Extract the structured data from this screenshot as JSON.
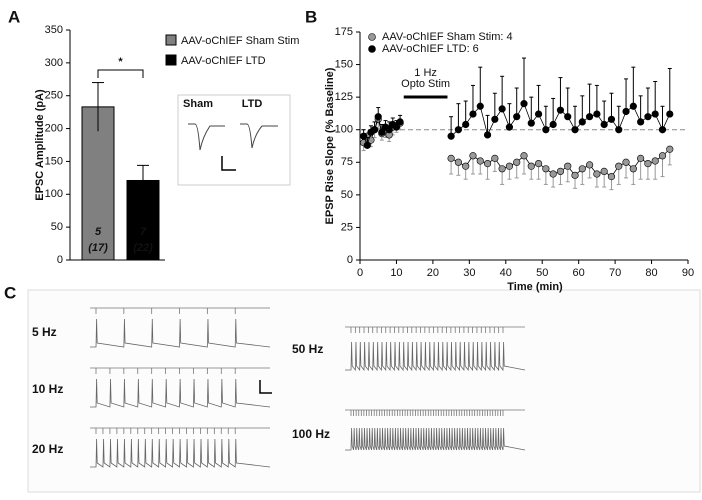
{
  "chart_data": [
    {
      "type": "bar",
      "panel": "A",
      "ylabel": "EPSC Amplitude (pA)",
      "categories": [
        null,
        null
      ],
      "series": [
        {
          "name": "AAV-oChIEF Sham Stim",
          "color": "#808080"
        },
        {
          "name": "AAV-oChIEF LTD",
          "color": "#000000"
        }
      ],
      "values": [
        233,
        121
      ],
      "errors": [
        37,
        23
      ],
      "n_labels": [
        [
          "5",
          "(17)"
        ],
        [
          "7",
          "(22)"
        ]
      ],
      "significance": "*",
      "inset_labels": [
        "Sham",
        "LTD"
      ],
      "ylim": [
        0,
        350
      ],
      "yticks": [
        0,
        50,
        100,
        150,
        200,
        250,
        300,
        350
      ]
    },
    {
      "type": "line",
      "panel": "B",
      "ylabel": "EPSP Rise Slope (% Baseline)",
      "xlabel": "Time  (min)",
      "x": [
        1,
        2,
        3,
        4,
        5,
        6,
        7,
        8,
        9,
        10,
        11,
        25,
        27,
        29,
        31,
        33,
        35,
        37,
        39,
        41,
        43,
        45,
        47,
        49,
        51,
        53,
        55,
        57,
        59,
        61,
        63,
        65,
        67,
        69,
        71,
        73,
        75,
        77,
        79,
        81,
        83,
        85
      ],
      "series": [
        {
          "name": "AAV-oChIEF Sham Stim: 4",
          "color": "#999999",
          "error_direction": "down",
          "values": [
            90,
            95,
            92,
            100,
            108,
            97,
            100,
            96,
            102,
            103,
            105,
            78,
            75,
            72,
            80,
            76,
            74,
            78,
            70,
            72,
            75,
            80,
            72,
            74,
            70,
            66,
            68,
            72,
            65,
            70,
            73,
            66,
            68,
            64,
            72,
            75,
            70,
            78,
            74,
            76,
            80,
            85
          ],
          "errors": [
            6,
            8,
            5,
            6,
            7,
            5,
            6,
            5,
            6,
            5,
            5,
            12,
            10,
            10,
            14,
            10,
            12,
            10,
            12,
            10,
            12,
            14,
            10,
            12,
            12,
            10,
            10,
            12,
            10,
            12,
            10,
            10,
            12,
            10,
            14,
            12,
            12,
            16,
            12,
            14,
            16,
            12
          ]
        },
        {
          "name": "AAV-oChIEF LTD: 6",
          "color": "#000000",
          "error_direction": "up",
          "values": [
            95,
            88,
            98,
            100,
            110,
            98,
            102,
            100,
            104,
            102,
            106,
            95,
            100,
            104,
            112,
            118,
            96,
            108,
            116,
            102,
            110,
            120,
            105,
            112,
            100,
            104,
            115,
            110,
            100,
            106,
            110,
            112,
            104,
            108,
            100,
            114,
            118,
            106,
            110,
            112,
            100,
            112
          ],
          "errors": [
            5,
            6,
            5,
            6,
            7,
            6,
            5,
            6,
            5,
            5,
            5,
            15,
            20,
            18,
            22,
            30,
            15,
            20,
            25,
            18,
            22,
            35,
            20,
            22,
            18,
            20,
            25,
            22,
            18,
            20,
            25,
            22,
            18,
            20,
            18,
            25,
            30,
            20,
            22,
            25,
            18,
            35
          ]
        }
      ],
      "reference_line": 100,
      "annotation": {
        "text": [
          "1 Hz",
          "Opto Stim"
        ],
        "x": [
          12,
          24
        ]
      },
      "xlim": [
        0,
        90
      ],
      "xticks": [
        0,
        10,
        20,
        30,
        40,
        50,
        60,
        70,
        80,
        90
      ],
      "ylim": [
        0,
        175
      ],
      "yticks": [
        0,
        25,
        50,
        75,
        100,
        125,
        150,
        175
      ]
    },
    {
      "type": "traces",
      "panel": "C",
      "labels": [
        "5 Hz",
        "10 Hz",
        "20 Hz",
        "50 Hz",
        "100 Hz"
      ]
    }
  ]
}
